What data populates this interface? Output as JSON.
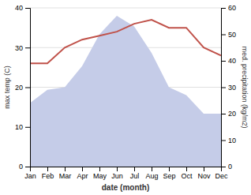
{
  "chart_data": {
    "type": "line",
    "categories": [
      "Jan",
      "Feb",
      "Mar",
      "Apr",
      "May",
      "Jun",
      "Jul",
      "Aug",
      "Sep",
      "Oct",
      "Nov",
      "Dec"
    ],
    "series": [
      {
        "type": "area",
        "axis": "y2",
        "color": "#c5cce8",
        "values": [
          24,
          29,
          30,
          38,
          50,
          57,
          53,
          43,
          30,
          27,
          20,
          20
        ]
      },
      {
        "type": "line",
        "color": "#c0524a",
        "values": [
          26,
          26,
          30,
          32,
          33,
          34,
          36,
          37,
          35,
          35,
          30,
          28
        ]
      }
    ],
    "x_label": "date (month)",
    "y_label": "max temp (C)",
    "y2_label": "med. precipitation (kg/m2)",
    "ylim": [
      0,
      40
    ],
    "yticks": [
      0,
      10,
      20,
      30,
      40
    ],
    "y2lim": [
      0,
      60
    ],
    "y2ticks": [
      0,
      10,
      20,
      30,
      40,
      50,
      60
    ],
    "grid": true
  }
}
